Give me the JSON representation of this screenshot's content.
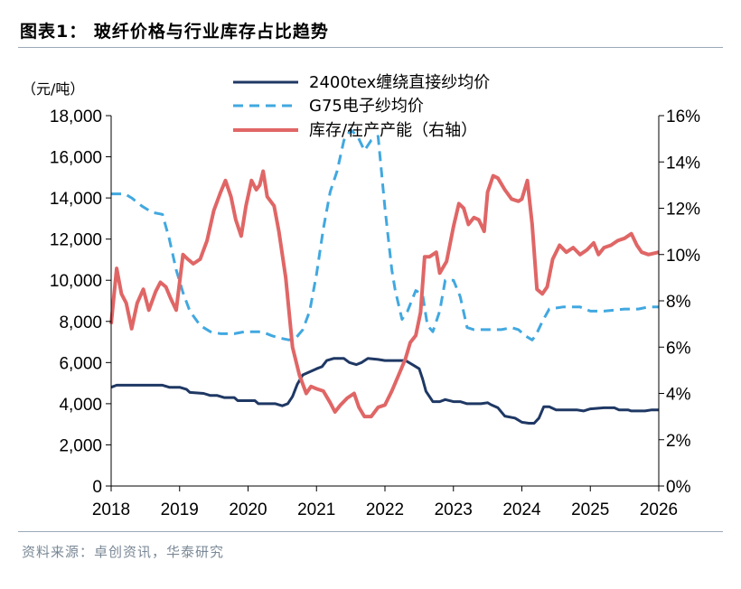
{
  "title": "图表1：  玻纤价格与行业库存占比趋势",
  "source": "资料来源：卓创资讯，华泰研究",
  "chart_data": {
    "type": "line",
    "unit_left": "（元/吨）",
    "x_range": [
      2018,
      2026
    ],
    "x_ticks": [
      "2018",
      "2019",
      "2020",
      "2021",
      "2022",
      "2023",
      "2024",
      "2025",
      "2026"
    ],
    "y_left_range": [
      0,
      18000
    ],
    "y_left_ticks": [
      "0",
      "2,000",
      "4,000",
      "6,000",
      "8,000",
      "10,000",
      "12,000",
      "14,000",
      "16,000",
      "18,000"
    ],
    "y_right_range": [
      0,
      16
    ],
    "y_right_ticks": [
      "0%",
      "2%",
      "4%",
      "6%",
      "8%",
      "10%",
      "12%",
      "14%",
      "16%"
    ],
    "legend_position": "top-center",
    "series": [
      {
        "name": "2400tex缠绕直接纱均价",
        "axis": "left",
        "color": "#1f3864",
        "style": "solid",
        "points": [
          [
            2018.0,
            4800
          ],
          [
            2018.08,
            4900
          ],
          [
            2018.5,
            4900
          ],
          [
            2018.75,
            4900
          ],
          [
            2018.85,
            4800
          ],
          [
            2019.0,
            4800
          ],
          [
            2019.1,
            4700
          ],
          [
            2019.15,
            4550
          ],
          [
            2019.35,
            4500
          ],
          [
            2019.45,
            4400
          ],
          [
            2019.55,
            4400
          ],
          [
            2019.65,
            4300
          ],
          [
            2019.8,
            4300
          ],
          [
            2019.85,
            4150
          ],
          [
            2020.1,
            4150
          ],
          [
            2020.15,
            4000
          ],
          [
            2020.4,
            4000
          ],
          [
            2020.5,
            3900
          ],
          [
            2020.58,
            4000
          ],
          [
            2020.65,
            4350
          ],
          [
            2020.72,
            4950
          ],
          [
            2020.8,
            5400
          ],
          [
            2021.0,
            5700
          ],
          [
            2021.08,
            5800
          ],
          [
            2021.15,
            6100
          ],
          [
            2021.25,
            6200
          ],
          [
            2021.4,
            6200
          ],
          [
            2021.48,
            6000
          ],
          [
            2021.58,
            5900
          ],
          [
            2021.66,
            6000
          ],
          [
            2021.75,
            6200
          ],
          [
            2021.9,
            6150
          ],
          [
            2022.0,
            6100
          ],
          [
            2022.3,
            6100
          ],
          [
            2022.4,
            5900
          ],
          [
            2022.5,
            5700
          ],
          [
            2022.55,
            5200
          ],
          [
            2022.6,
            4600
          ],
          [
            2022.7,
            4100
          ],
          [
            2022.8,
            4100
          ],
          [
            2022.88,
            4200
          ],
          [
            2023.0,
            4100
          ],
          [
            2023.1,
            4100
          ],
          [
            2023.2,
            4000
          ],
          [
            2023.4,
            4000
          ],
          [
            2023.5,
            4050
          ],
          [
            2023.55,
            3950
          ],
          [
            2023.65,
            3800
          ],
          [
            2023.75,
            3400
          ],
          [
            2023.9,
            3300
          ],
          [
            2024.0,
            3100
          ],
          [
            2024.1,
            3050
          ],
          [
            2024.18,
            3050
          ],
          [
            2024.25,
            3300
          ],
          [
            2024.32,
            3850
          ],
          [
            2024.4,
            3850
          ],
          [
            2024.5,
            3700
          ],
          [
            2024.8,
            3700
          ],
          [
            2024.9,
            3650
          ],
          [
            2025.0,
            3750
          ],
          [
            2025.2,
            3800
          ],
          [
            2025.35,
            3800
          ],
          [
            2025.42,
            3700
          ],
          [
            2025.55,
            3700
          ],
          [
            2025.6,
            3650
          ],
          [
            2025.8,
            3650
          ],
          [
            2025.9,
            3700
          ],
          [
            2026.0,
            3700
          ]
        ]
      },
      {
        "name": "G75电子纱均价",
        "axis": "left",
        "color": "#41a8e0",
        "style": "dashed",
        "points": [
          [
            2018.0,
            14200
          ],
          [
            2018.2,
            14200
          ],
          [
            2018.3,
            14000
          ],
          [
            2018.45,
            13600
          ],
          [
            2018.6,
            13300
          ],
          [
            2018.75,
            13200
          ],
          [
            2018.85,
            12000
          ],
          [
            2018.95,
            10500
          ],
          [
            2019.05,
            9400
          ],
          [
            2019.15,
            8500
          ],
          [
            2019.3,
            7800
          ],
          [
            2019.45,
            7500
          ],
          [
            2019.6,
            7400
          ],
          [
            2019.8,
            7400
          ],
          [
            2019.95,
            7500
          ],
          [
            2020.2,
            7500
          ],
          [
            2020.35,
            7300
          ],
          [
            2020.45,
            7200
          ],
          [
            2020.6,
            7100
          ],
          [
            2020.7,
            7200
          ],
          [
            2020.8,
            7600
          ],
          [
            2020.9,
            8500
          ],
          [
            2021.0,
            10300
          ],
          [
            2021.1,
            12500
          ],
          [
            2021.2,
            14300
          ],
          [
            2021.3,
            15300
          ],
          [
            2021.4,
            16800
          ],
          [
            2021.5,
            17300
          ],
          [
            2021.6,
            17000
          ],
          [
            2021.7,
            16300
          ],
          [
            2021.8,
            16800
          ],
          [
            2021.9,
            17000
          ],
          [
            2022.0,
            13500
          ],
          [
            2022.1,
            10500
          ],
          [
            2022.15,
            9500
          ],
          [
            2022.25,
            8100
          ],
          [
            2022.33,
            8500
          ],
          [
            2022.45,
            9500
          ],
          [
            2022.55,
            9300
          ],
          [
            2022.62,
            7800
          ],
          [
            2022.7,
            7500
          ],
          [
            2022.8,
            8500
          ],
          [
            2022.88,
            10000
          ],
          [
            2023.0,
            10000
          ],
          [
            2023.1,
            9200
          ],
          [
            2023.2,
            7700
          ],
          [
            2023.3,
            7600
          ],
          [
            2023.5,
            7600
          ],
          [
            2023.6,
            7600
          ],
          [
            2023.7,
            7600
          ],
          [
            2023.85,
            7700
          ],
          [
            2023.95,
            7600
          ],
          [
            2024.05,
            7300
          ],
          [
            2024.15,
            7100
          ],
          [
            2024.2,
            7300
          ],
          [
            2024.3,
            8000
          ],
          [
            2024.4,
            8600
          ],
          [
            2024.6,
            8700
          ],
          [
            2024.85,
            8700
          ],
          [
            2025.0,
            8500
          ],
          [
            2025.2,
            8500
          ],
          [
            2025.5,
            8600
          ],
          [
            2025.7,
            8600
          ],
          [
            2025.85,
            8700
          ],
          [
            2026.0,
            8700
          ]
        ]
      },
      {
        "name": "库存/在产产能（右轴）",
        "axis": "right",
        "color": "#e06666",
        "style": "solid",
        "points": [
          [
            2018.0,
            7.0
          ],
          [
            2018.08,
            9.4
          ],
          [
            2018.15,
            8.3
          ],
          [
            2018.22,
            7.9
          ],
          [
            2018.3,
            6.8
          ],
          [
            2018.38,
            7.9
          ],
          [
            2018.47,
            8.5
          ],
          [
            2018.55,
            7.6
          ],
          [
            2018.65,
            8.4
          ],
          [
            2018.72,
            8.8
          ],
          [
            2018.8,
            8.6
          ],
          [
            2018.87,
            8.1
          ],
          [
            2018.95,
            7.6
          ],
          [
            2019.05,
            10.0
          ],
          [
            2019.12,
            9.8
          ],
          [
            2019.2,
            9.6
          ],
          [
            2019.3,
            9.8
          ],
          [
            2019.4,
            10.6
          ],
          [
            2019.5,
            11.9
          ],
          [
            2019.6,
            12.7
          ],
          [
            2019.67,
            13.2
          ],
          [
            2019.75,
            12.5
          ],
          [
            2019.82,
            11.5
          ],
          [
            2019.9,
            10.8
          ],
          [
            2019.97,
            12.1
          ],
          [
            2020.05,
            13.2
          ],
          [
            2020.12,
            12.8
          ],
          [
            2020.17,
            13.0
          ],
          [
            2020.22,
            13.6
          ],
          [
            2020.28,
            12.5
          ],
          [
            2020.38,
            12.1
          ],
          [
            2020.45,
            11.0
          ],
          [
            2020.55,
            9.0
          ],
          [
            2020.65,
            6.0
          ],
          [
            2020.75,
            4.8
          ],
          [
            2020.85,
            4.0
          ],
          [
            2020.92,
            4.3
          ],
          [
            2021.0,
            4.2
          ],
          [
            2021.1,
            4.1
          ],
          [
            2021.2,
            3.6
          ],
          [
            2021.27,
            3.2
          ],
          [
            2021.35,
            3.5
          ],
          [
            2021.45,
            3.8
          ],
          [
            2021.55,
            4.0
          ],
          [
            2021.62,
            3.4
          ],
          [
            2021.7,
            3.0
          ],
          [
            2021.8,
            3.0
          ],
          [
            2021.9,
            3.4
          ],
          [
            2022.0,
            3.5
          ],
          [
            2022.1,
            4.1
          ],
          [
            2022.2,
            4.8
          ],
          [
            2022.3,
            5.5
          ],
          [
            2022.37,
            6.2
          ],
          [
            2022.45,
            6.5
          ],
          [
            2022.52,
            7.5
          ],
          [
            2022.58,
            9.9
          ],
          [
            2022.65,
            9.9
          ],
          [
            2022.75,
            10.1
          ],
          [
            2022.8,
            9.2
          ],
          [
            2022.9,
            9.7
          ],
          [
            2023.0,
            11.2
          ],
          [
            2023.08,
            12.2
          ],
          [
            2023.15,
            12.0
          ],
          [
            2023.22,
            11.3
          ],
          [
            2023.3,
            11.6
          ],
          [
            2023.37,
            11.5
          ],
          [
            2023.45,
            11.0
          ],
          [
            2023.5,
            12.7
          ],
          [
            2023.58,
            13.4
          ],
          [
            2023.65,
            13.3
          ],
          [
            2023.75,
            12.8
          ],
          [
            2023.85,
            12.4
          ],
          [
            2023.95,
            12.3
          ],
          [
            2024.0,
            12.4
          ],
          [
            2024.08,
            13.2
          ],
          [
            2024.15,
            11.3
          ],
          [
            2024.22,
            8.5
          ],
          [
            2024.3,
            8.3
          ],
          [
            2024.37,
            8.6
          ],
          [
            2024.45,
            9.8
          ],
          [
            2024.55,
            10.4
          ],
          [
            2024.65,
            10.1
          ],
          [
            2024.75,
            10.3
          ],
          [
            2024.85,
            10.0
          ],
          [
            2024.95,
            10.2
          ],
          [
            2025.05,
            10.5
          ],
          [
            2025.12,
            10.0
          ],
          [
            2025.2,
            10.3
          ],
          [
            2025.3,
            10.4
          ],
          [
            2025.4,
            10.6
          ],
          [
            2025.5,
            10.7
          ],
          [
            2025.6,
            10.9
          ],
          [
            2025.68,
            10.4
          ],
          [
            2025.75,
            10.1
          ],
          [
            2025.85,
            10.0
          ],
          [
            2026.0,
            10.1
          ]
        ]
      }
    ]
  }
}
